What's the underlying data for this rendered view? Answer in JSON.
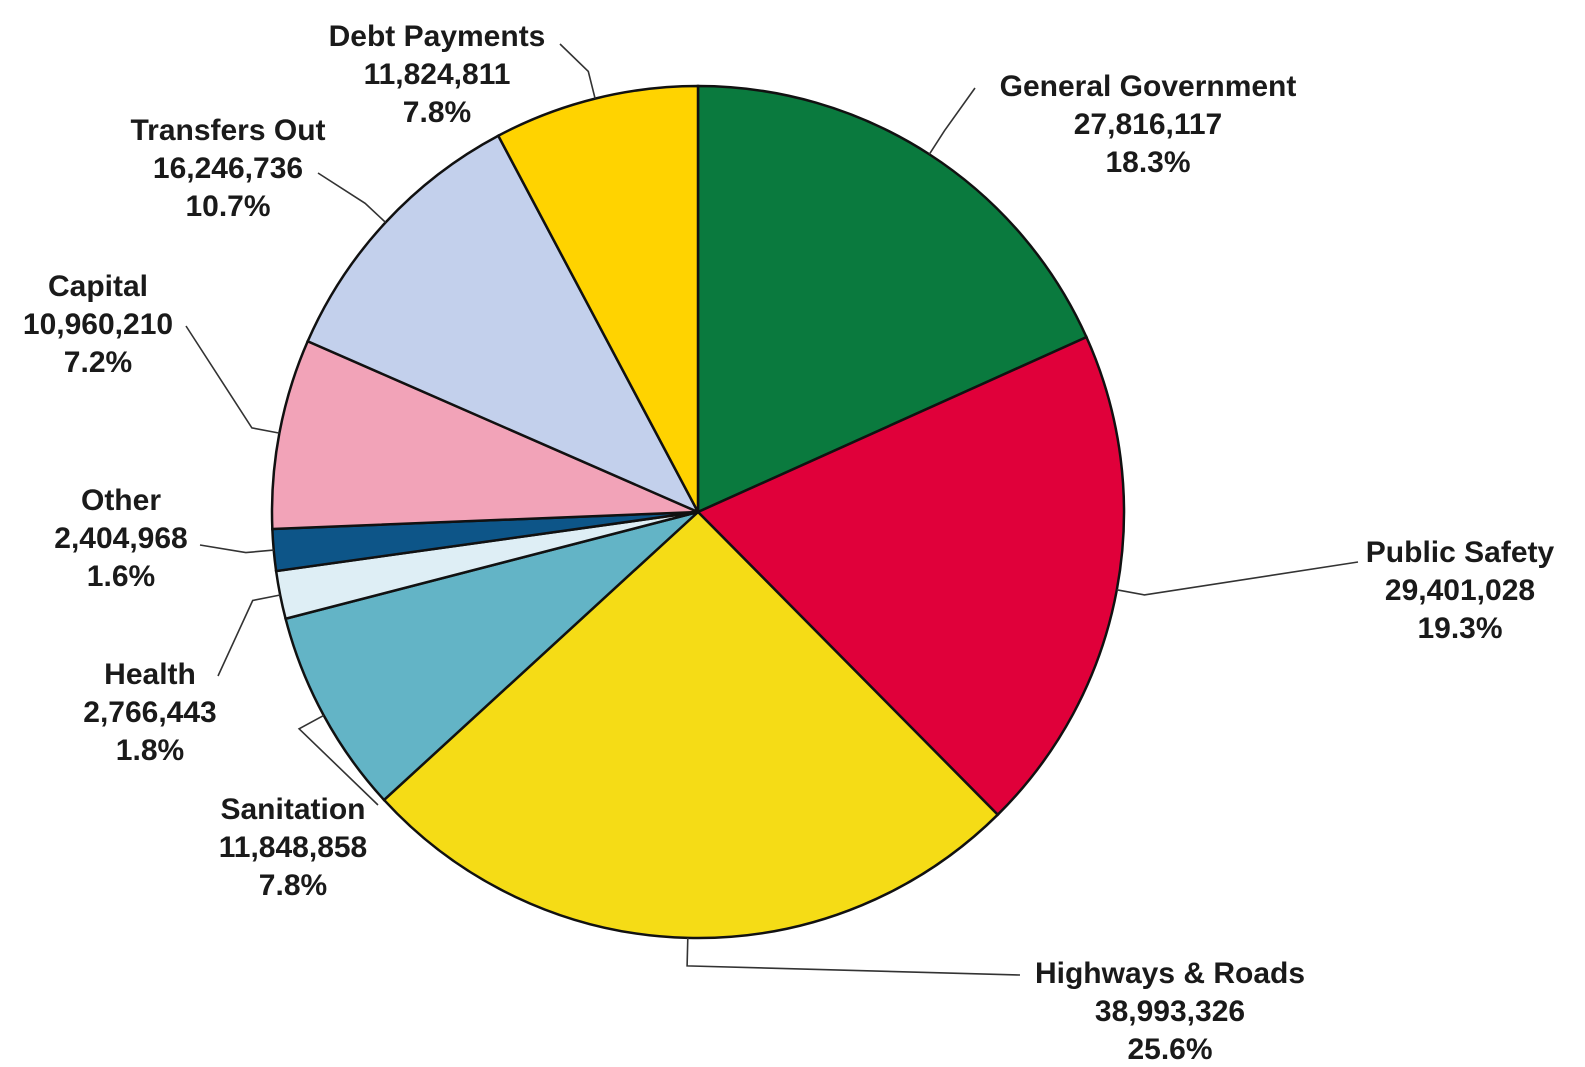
{
  "chart_data": {
    "type": "pie",
    "title": "",
    "start_angle_deg": 0,
    "direction": "clockwise",
    "legend": "none",
    "slices": [
      {
        "name": "General Government",
        "value": 27816117,
        "value_label": "27,816,117",
        "percent_label": "18.3%",
        "color": "#0a7a3e"
      },
      {
        "name": "Public Safety",
        "value": 29401028,
        "value_label": "29,401,028",
        "percent_label": "19.3%",
        "color": "#e0003a"
      },
      {
        "name": "Highways & Roads",
        "value": 38993326,
        "value_label": "38,993,326",
        "percent_label": "25.6%",
        "color": "#f5dc16"
      },
      {
        "name": "Sanitation",
        "value": 11848858,
        "value_label": "11,848,858",
        "percent_label": "7.8%",
        "color": "#63b4c6"
      },
      {
        "name": "Health",
        "value": 2766443,
        "value_label": "2,766,443",
        "percent_label": "1.8%",
        "color": "#deeef5"
      },
      {
        "name": "Other",
        "value": 2404968,
        "value_label": "2,404,968",
        "percent_label": "1.6%",
        "color": "#0d5588"
      },
      {
        "name": "Capital",
        "value": 10960210,
        "value_label": "10,960,210",
        "percent_label": "7.2%",
        "color": "#f2a3b8"
      },
      {
        "name": "Transfers Out",
        "value": 16246736,
        "value_label": "16,246,736",
        "percent_label": "10.7%",
        "color": "#c3d0ec"
      },
      {
        "name": "Debt Payments",
        "value": 11824811,
        "value_label": "11,824,811",
        "percent_label": "7.8%",
        "color": "#ffd300"
      }
    ]
  }
}
